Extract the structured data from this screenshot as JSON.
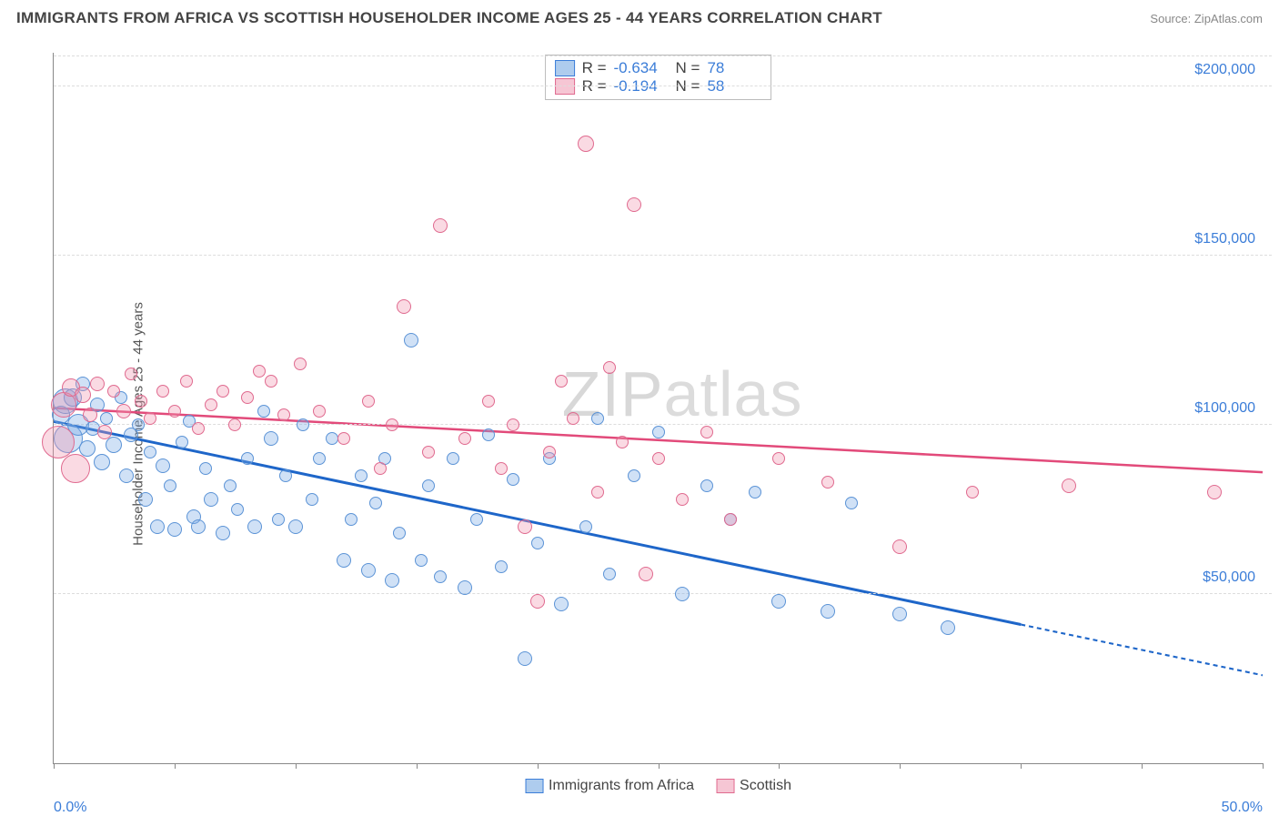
{
  "title": "IMMIGRANTS FROM AFRICA VS SCOTTISH HOUSEHOLDER INCOME AGES 25 - 44 YEARS CORRELATION CHART",
  "source_label": "Source:",
  "source_name": "ZipAtlas.com",
  "ylabel": "Householder Income Ages 25 - 44 years",
  "watermark_a": "ZIP",
  "watermark_b": "atlas",
  "chart": {
    "type": "scatter",
    "xlim": [
      0,
      50
    ],
    "ylim": [
      0,
      210000
    ],
    "x_tick_positions": [
      0,
      5,
      10,
      15,
      20,
      25,
      30,
      35,
      40,
      45,
      50
    ],
    "x_tick_labels_shown": {
      "0": "0.0%",
      "50": "50.0%"
    },
    "y_gridlines": [
      50000,
      100000,
      150000,
      200000
    ],
    "y_tick_labels": {
      "50000": "$50,000",
      "100000": "$100,000",
      "150000": "$150,000",
      "200000": "$200,000"
    },
    "background_color": "#ffffff",
    "grid_color": "#dddddd",
    "axis_color": "#888888",
    "tick_label_color": "#3b7dd8",
    "series": [
      {
        "key": "africa",
        "label": "Immigrants from Africa",
        "fill": "rgba(120,170,230,0.35)",
        "stroke": "#5b93d6",
        "swatch_fill": "#aeccee",
        "swatch_stroke": "#3b7dd8",
        "R": "-0.634",
        "N": "78",
        "trend": {
          "x1": 0,
          "y1": 101000,
          "x2": 40,
          "y2": 41000,
          "x2_extent": 50,
          "y2_extent": 26000,
          "color": "#1e66c9",
          "width": 3
        },
        "points": [
          {
            "x": 0.3,
            "y": 103000,
            "r": 10
          },
          {
            "x": 0.5,
            "y": 107000,
            "r": 14
          },
          {
            "x": 0.6,
            "y": 96000,
            "r": 16
          },
          {
            "x": 0.8,
            "y": 108000,
            "r": 10
          },
          {
            "x": 1.0,
            "y": 100000,
            "r": 12
          },
          {
            "x": 1.2,
            "y": 112000,
            "r": 8
          },
          {
            "x": 1.4,
            "y": 93000,
            "r": 9
          },
          {
            "x": 1.6,
            "y": 99000,
            "r": 8
          },
          {
            "x": 1.8,
            "y": 106000,
            "r": 8
          },
          {
            "x": 2.0,
            "y": 89000,
            "r": 9
          },
          {
            "x": 2.2,
            "y": 102000,
            "r": 7
          },
          {
            "x": 2.5,
            "y": 94000,
            "r": 9
          },
          {
            "x": 2.8,
            "y": 108000,
            "r": 7
          },
          {
            "x": 3.0,
            "y": 85000,
            "r": 8
          },
          {
            "x": 3.2,
            "y": 97000,
            "r": 8
          },
          {
            "x": 3.5,
            "y": 100000,
            "r": 7
          },
          {
            "x": 3.8,
            "y": 78000,
            "r": 8
          },
          {
            "x": 4.0,
            "y": 92000,
            "r": 7
          },
          {
            "x": 4.3,
            "y": 70000,
            "r": 8
          },
          {
            "x": 4.5,
            "y": 88000,
            "r": 8
          },
          {
            "x": 4.8,
            "y": 82000,
            "r": 7
          },
          {
            "x": 5.0,
            "y": 69000,
            "r": 8
          },
          {
            "x": 5.3,
            "y": 95000,
            "r": 7
          },
          {
            "x": 5.6,
            "y": 101000,
            "r": 7
          },
          {
            "x": 5.8,
            "y": 73000,
            "r": 8
          },
          {
            "x": 6.0,
            "y": 70000,
            "r": 8
          },
          {
            "x": 6.3,
            "y": 87000,
            "r": 7
          },
          {
            "x": 6.5,
            "y": 78000,
            "r": 8
          },
          {
            "x": 7.0,
            "y": 68000,
            "r": 8
          },
          {
            "x": 7.3,
            "y": 82000,
            "r": 7
          },
          {
            "x": 7.6,
            "y": 75000,
            "r": 7
          },
          {
            "x": 8.0,
            "y": 90000,
            "r": 7
          },
          {
            "x": 8.3,
            "y": 70000,
            "r": 8
          },
          {
            "x": 8.7,
            "y": 104000,
            "r": 7
          },
          {
            "x": 9.0,
            "y": 96000,
            "r": 8
          },
          {
            "x": 9.3,
            "y": 72000,
            "r": 7
          },
          {
            "x": 9.6,
            "y": 85000,
            "r": 7
          },
          {
            "x": 10.0,
            "y": 70000,
            "r": 8
          },
          {
            "x": 10.3,
            "y": 100000,
            "r": 7
          },
          {
            "x": 10.7,
            "y": 78000,
            "r": 7
          },
          {
            "x": 11.0,
            "y": 90000,
            "r": 7
          },
          {
            "x": 11.5,
            "y": 96000,
            "r": 7
          },
          {
            "x": 12.0,
            "y": 60000,
            "r": 8
          },
          {
            "x": 12.3,
            "y": 72000,
            "r": 7
          },
          {
            "x": 12.7,
            "y": 85000,
            "r": 7
          },
          {
            "x": 13.0,
            "y": 57000,
            "r": 8
          },
          {
            "x": 13.3,
            "y": 77000,
            "r": 7
          },
          {
            "x": 13.7,
            "y": 90000,
            "r": 7
          },
          {
            "x": 14.0,
            "y": 54000,
            "r": 8
          },
          {
            "x": 14.3,
            "y": 68000,
            "r": 7
          },
          {
            "x": 14.8,
            "y": 125000,
            "r": 8
          },
          {
            "x": 15.2,
            "y": 60000,
            "r": 7
          },
          {
            "x": 15.5,
            "y": 82000,
            "r": 7
          },
          {
            "x": 16.0,
            "y": 55000,
            "r": 7
          },
          {
            "x": 16.5,
            "y": 90000,
            "r": 7
          },
          {
            "x": 17.0,
            "y": 52000,
            "r": 8
          },
          {
            "x": 17.5,
            "y": 72000,
            "r": 7
          },
          {
            "x": 18.0,
            "y": 97000,
            "r": 7
          },
          {
            "x": 18.5,
            "y": 58000,
            "r": 7
          },
          {
            "x": 19.0,
            "y": 84000,
            "r": 7
          },
          {
            "x": 19.5,
            "y": 31000,
            "r": 8
          },
          {
            "x": 20.0,
            "y": 65000,
            "r": 7
          },
          {
            "x": 20.5,
            "y": 90000,
            "r": 7
          },
          {
            "x": 21.0,
            "y": 47000,
            "r": 8
          },
          {
            "x": 22.0,
            "y": 70000,
            "r": 7
          },
          {
            "x": 22.5,
            "y": 102000,
            "r": 7
          },
          {
            "x": 23.0,
            "y": 56000,
            "r": 7
          },
          {
            "x": 24.0,
            "y": 85000,
            "r": 7
          },
          {
            "x": 25.0,
            "y": 98000,
            "r": 7
          },
          {
            "x": 26.0,
            "y": 50000,
            "r": 8
          },
          {
            "x": 27.0,
            "y": 82000,
            "r": 7
          },
          {
            "x": 28.0,
            "y": 72000,
            "r": 7
          },
          {
            "x": 29.0,
            "y": 80000,
            "r": 7
          },
          {
            "x": 30.0,
            "y": 48000,
            "r": 8
          },
          {
            "x": 32.0,
            "y": 45000,
            "r": 8
          },
          {
            "x": 33.0,
            "y": 77000,
            "r": 7
          },
          {
            "x": 35.0,
            "y": 44000,
            "r": 8
          },
          {
            "x": 37.0,
            "y": 40000,
            "r": 8
          }
        ]
      },
      {
        "key": "scottish",
        "label": "Scottish",
        "fill": "rgba(240,150,175,0.35)",
        "stroke": "#e06a8f",
        "swatch_fill": "#f6c6d4",
        "swatch_stroke": "#e06a8f",
        "R": "-0.194",
        "N": "58",
        "trend": {
          "x1": 0,
          "y1": 105000,
          "x2": 50,
          "y2": 86000,
          "color": "#e24a7a",
          "width": 2.5
        },
        "points": [
          {
            "x": 0.2,
            "y": 95000,
            "r": 18
          },
          {
            "x": 0.4,
            "y": 106000,
            "r": 14
          },
          {
            "x": 0.7,
            "y": 111000,
            "r": 10
          },
          {
            "x": 0.9,
            "y": 87000,
            "r": 16
          },
          {
            "x": 1.2,
            "y": 109000,
            "r": 9
          },
          {
            "x": 1.5,
            "y": 103000,
            "r": 8
          },
          {
            "x": 1.8,
            "y": 112000,
            "r": 8
          },
          {
            "x": 2.1,
            "y": 98000,
            "r": 8
          },
          {
            "x": 2.5,
            "y": 110000,
            "r": 7
          },
          {
            "x": 2.9,
            "y": 104000,
            "r": 8
          },
          {
            "x": 3.2,
            "y": 115000,
            "r": 7
          },
          {
            "x": 3.6,
            "y": 107000,
            "r": 7
          },
          {
            "x": 4.0,
            "y": 102000,
            "r": 7
          },
          {
            "x": 4.5,
            "y": 110000,
            "r": 7
          },
          {
            "x": 5.0,
            "y": 104000,
            "r": 7
          },
          {
            "x": 5.5,
            "y": 113000,
            "r": 7
          },
          {
            "x": 6.0,
            "y": 99000,
            "r": 7
          },
          {
            "x": 6.5,
            "y": 106000,
            "r": 7
          },
          {
            "x": 7.0,
            "y": 110000,
            "r": 7
          },
          {
            "x": 7.5,
            "y": 100000,
            "r": 7
          },
          {
            "x": 8.0,
            "y": 108000,
            "r": 7
          },
          {
            "x": 8.5,
            "y": 116000,
            "r": 7
          },
          {
            "x": 9.0,
            "y": 113000,
            "r": 7
          },
          {
            "x": 9.5,
            "y": 103000,
            "r": 7
          },
          {
            "x": 10.2,
            "y": 118000,
            "r": 7
          },
          {
            "x": 11.0,
            "y": 104000,
            "r": 7
          },
          {
            "x": 12.0,
            "y": 96000,
            "r": 7
          },
          {
            "x": 13.0,
            "y": 107000,
            "r": 7
          },
          {
            "x": 13.5,
            "y": 87000,
            "r": 7
          },
          {
            "x": 14.0,
            "y": 100000,
            "r": 7
          },
          {
            "x": 14.5,
            "y": 135000,
            "r": 8
          },
          {
            "x": 15.5,
            "y": 92000,
            "r": 7
          },
          {
            "x": 16.0,
            "y": 159000,
            "r": 8
          },
          {
            "x": 17.0,
            "y": 96000,
            "r": 7
          },
          {
            "x": 18.0,
            "y": 107000,
            "r": 7
          },
          {
            "x": 18.5,
            "y": 87000,
            "r": 7
          },
          {
            "x": 19.0,
            "y": 100000,
            "r": 7
          },
          {
            "x": 19.5,
            "y": 70000,
            "r": 8
          },
          {
            "x": 20.0,
            "y": 48000,
            "r": 8
          },
          {
            "x": 20.5,
            "y": 92000,
            "r": 7
          },
          {
            "x": 21.0,
            "y": 113000,
            "r": 7
          },
          {
            "x": 21.5,
            "y": 102000,
            "r": 7
          },
          {
            "x": 22.0,
            "y": 183000,
            "r": 9
          },
          {
            "x": 22.5,
            "y": 80000,
            "r": 7
          },
          {
            "x": 23.0,
            "y": 117000,
            "r": 7
          },
          {
            "x": 23.5,
            "y": 95000,
            "r": 7
          },
          {
            "x": 24.0,
            "y": 165000,
            "r": 8
          },
          {
            "x": 24.5,
            "y": 56000,
            "r": 8
          },
          {
            "x": 25.0,
            "y": 90000,
            "r": 7
          },
          {
            "x": 26.0,
            "y": 78000,
            "r": 7
          },
          {
            "x": 27.0,
            "y": 98000,
            "r": 7
          },
          {
            "x": 28.0,
            "y": 72000,
            "r": 7
          },
          {
            "x": 30.0,
            "y": 90000,
            "r": 7
          },
          {
            "x": 32.0,
            "y": 83000,
            "r": 7
          },
          {
            "x": 35.0,
            "y": 64000,
            "r": 8
          },
          {
            "x": 38.0,
            "y": 80000,
            "r": 7
          },
          {
            "x": 42.0,
            "y": 82000,
            "r": 8
          },
          {
            "x": 48.0,
            "y": 80000,
            "r": 8
          }
        ]
      }
    ]
  },
  "legend_top": {
    "R_label": "R =",
    "N_label": "N ="
  }
}
